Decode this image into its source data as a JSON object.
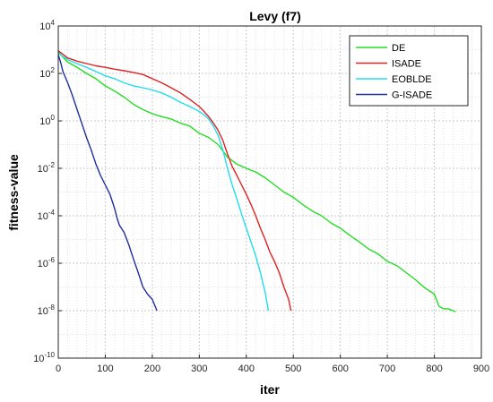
{
  "chart_data": {
    "type": "line",
    "title": "Levy (f7)",
    "xlabel": "iter",
    "ylabel": "fitness-value",
    "xlim": [
      0,
      900
    ],
    "ylim": [
      1e-10,
      10000
    ],
    "yscale": "log",
    "grid": "on (dashed, x and y)",
    "legend_position": "top-right",
    "x_ticks": [
      0,
      100,
      200,
      300,
      400,
      500,
      600,
      700,
      800,
      900
    ],
    "y_ticks": [
      {
        "value": 1e-10,
        "base": "10",
        "exp": "-10"
      },
      {
        "value": 1e-08,
        "base": "10",
        "exp": "-8"
      },
      {
        "value": 1e-06,
        "base": "10",
        "exp": "-6"
      },
      {
        "value": 0.0001,
        "base": "10",
        "exp": "-4"
      },
      {
        "value": 0.01,
        "base": "10",
        "exp": "-2"
      },
      {
        "value": 1,
        "base": "10",
        "exp": "0"
      },
      {
        "value": 100,
        "base": "10",
        "exp": "2"
      },
      {
        "value": 10000,
        "base": "10",
        "exp": "4"
      }
    ],
    "series": [
      {
        "name": "DE",
        "color": "#22dd22",
        "points": [
          [
            0,
            800
          ],
          [
            20,
            300
          ],
          [
            40,
            180
          ],
          [
            60,
            100
          ],
          [
            80,
            60
          ],
          [
            100,
            30
          ],
          [
            120,
            18
          ],
          [
            140,
            10
          ],
          [
            160,
            5
          ],
          [
            180,
            3
          ],
          [
            200,
            2
          ],
          [
            220,
            1.5
          ],
          [
            240,
            1.2
          ],
          [
            260,
            0.8
          ],
          [
            280,
            0.6
          ],
          [
            300,
            0.3
          ],
          [
            320,
            0.2
          ],
          [
            340,
            0.1
          ],
          [
            360,
            0.03
          ],
          [
            380,
            0.015
          ],
          [
            400,
            0.01
          ],
          [
            420,
            0.007
          ],
          [
            440,
            0.004
          ],
          [
            460,
            0.002
          ],
          [
            480,
            0.001
          ],
          [
            500,
            0.0006
          ],
          [
            520,
            0.0003
          ],
          [
            540,
            0.00016
          ],
          [
            560,
            0.0001
          ],
          [
            580,
            5e-05
          ],
          [
            600,
            3e-05
          ],
          [
            620,
            1.5e-05
          ],
          [
            640,
            8e-06
          ],
          [
            660,
            4e-06
          ],
          [
            680,
            2.5e-06
          ],
          [
            700,
            1.2e-06
          ],
          [
            720,
            8e-07
          ],
          [
            740,
            4e-07
          ],
          [
            760,
            2e-07
          ],
          [
            780,
            9e-08
          ],
          [
            800,
            5e-08
          ],
          [
            810,
            1.5e-08
          ],
          [
            820,
            1.2e-08
          ],
          [
            830,
            1.2e-08
          ],
          [
            845,
            9e-09
          ]
        ]
      },
      {
        "name": "ISADE",
        "color": "#dd2222",
        "points": [
          [
            0,
            900
          ],
          [
            20,
            450
          ],
          [
            40,
            330
          ],
          [
            60,
            260
          ],
          [
            80,
            210
          ],
          [
            100,
            180
          ],
          [
            120,
            150
          ],
          [
            140,
            130
          ],
          [
            160,
            110
          ],
          [
            180,
            90
          ],
          [
            200,
            60
          ],
          [
            220,
            40
          ],
          [
            240,
            25
          ],
          [
            260,
            15
          ],
          [
            280,
            8
          ],
          [
            300,
            4
          ],
          [
            310,
            2.5
          ],
          [
            320,
            1.5
          ],
          [
            330,
            0.8
          ],
          [
            340,
            0.4
          ],
          [
            350,
            0.15
          ],
          [
            360,
            0.04
          ],
          [
            370,
            0.012
          ],
          [
            380,
            0.005
          ],
          [
            390,
            0.002
          ],
          [
            400,
            0.0008
          ],
          [
            410,
            0.0003
          ],
          [
            420,
            0.0001
          ],
          [
            430,
            3e-05
          ],
          [
            440,
            1e-05
          ],
          [
            450,
            3e-06
          ],
          [
            460,
            1.2e-06
          ],
          [
            470,
            4e-07
          ],
          [
            480,
            1e-07
          ],
          [
            490,
            3e-08
          ],
          [
            495,
            1e-08
          ]
        ]
      },
      {
        "name": "EOBLDE",
        "color": "#22ddee",
        "points": [
          [
            0,
            700
          ],
          [
            20,
            380
          ],
          [
            40,
            260
          ],
          [
            60,
            180
          ],
          [
            80,
            120
          ],
          [
            100,
            80
          ],
          [
            120,
            60
          ],
          [
            140,
            40
          ],
          [
            160,
            30
          ],
          [
            180,
            25
          ],
          [
            200,
            20
          ],
          [
            220,
            15
          ],
          [
            240,
            10
          ],
          [
            260,
            6
          ],
          [
            280,
            4
          ],
          [
            300,
            2.5
          ],
          [
            310,
            1.8
          ],
          [
            320,
            1.2
          ],
          [
            330,
            0.6
          ],
          [
            340,
            0.25
          ],
          [
            350,
            0.06
          ],
          [
            360,
            0.01
          ],
          [
            370,
            0.002
          ],
          [
            380,
            0.0005
          ],
          [
            390,
            0.00012
          ],
          [
            400,
            3e-05
          ],
          [
            410,
            8e-06
          ],
          [
            420,
            2e-06
          ],
          [
            430,
            4e-07
          ],
          [
            440,
            6e-08
          ],
          [
            447,
            1e-08
          ]
        ]
      },
      {
        "name": "G-ISADE",
        "color": "#1f2fa0",
        "points": [
          [
            0,
            600
          ],
          [
            5,
            300
          ],
          [
            10,
            120
          ],
          [
            20,
            40
          ],
          [
            30,
            12
          ],
          [
            40,
            3
          ],
          [
            50,
            0.8
          ],
          [
            60,
            0.2
          ],
          [
            70,
            0.06
          ],
          [
            80,
            0.015
          ],
          [
            90,
            0.005
          ],
          [
            100,
            0.002
          ],
          [
            110,
            0.0008
          ],
          [
            120,
            0.0002
          ],
          [
            125,
            8e-05
          ],
          [
            130,
            4e-05
          ],
          [
            140,
            2e-05
          ],
          [
            150,
            6e-06
          ],
          [
            160,
            1.5e-06
          ],
          [
            170,
            4e-07
          ],
          [
            180,
            1e-07
          ],
          [
            190,
            5e-08
          ],
          [
            200,
            3e-08
          ],
          [
            210,
            1e-08
          ]
        ]
      }
    ]
  }
}
